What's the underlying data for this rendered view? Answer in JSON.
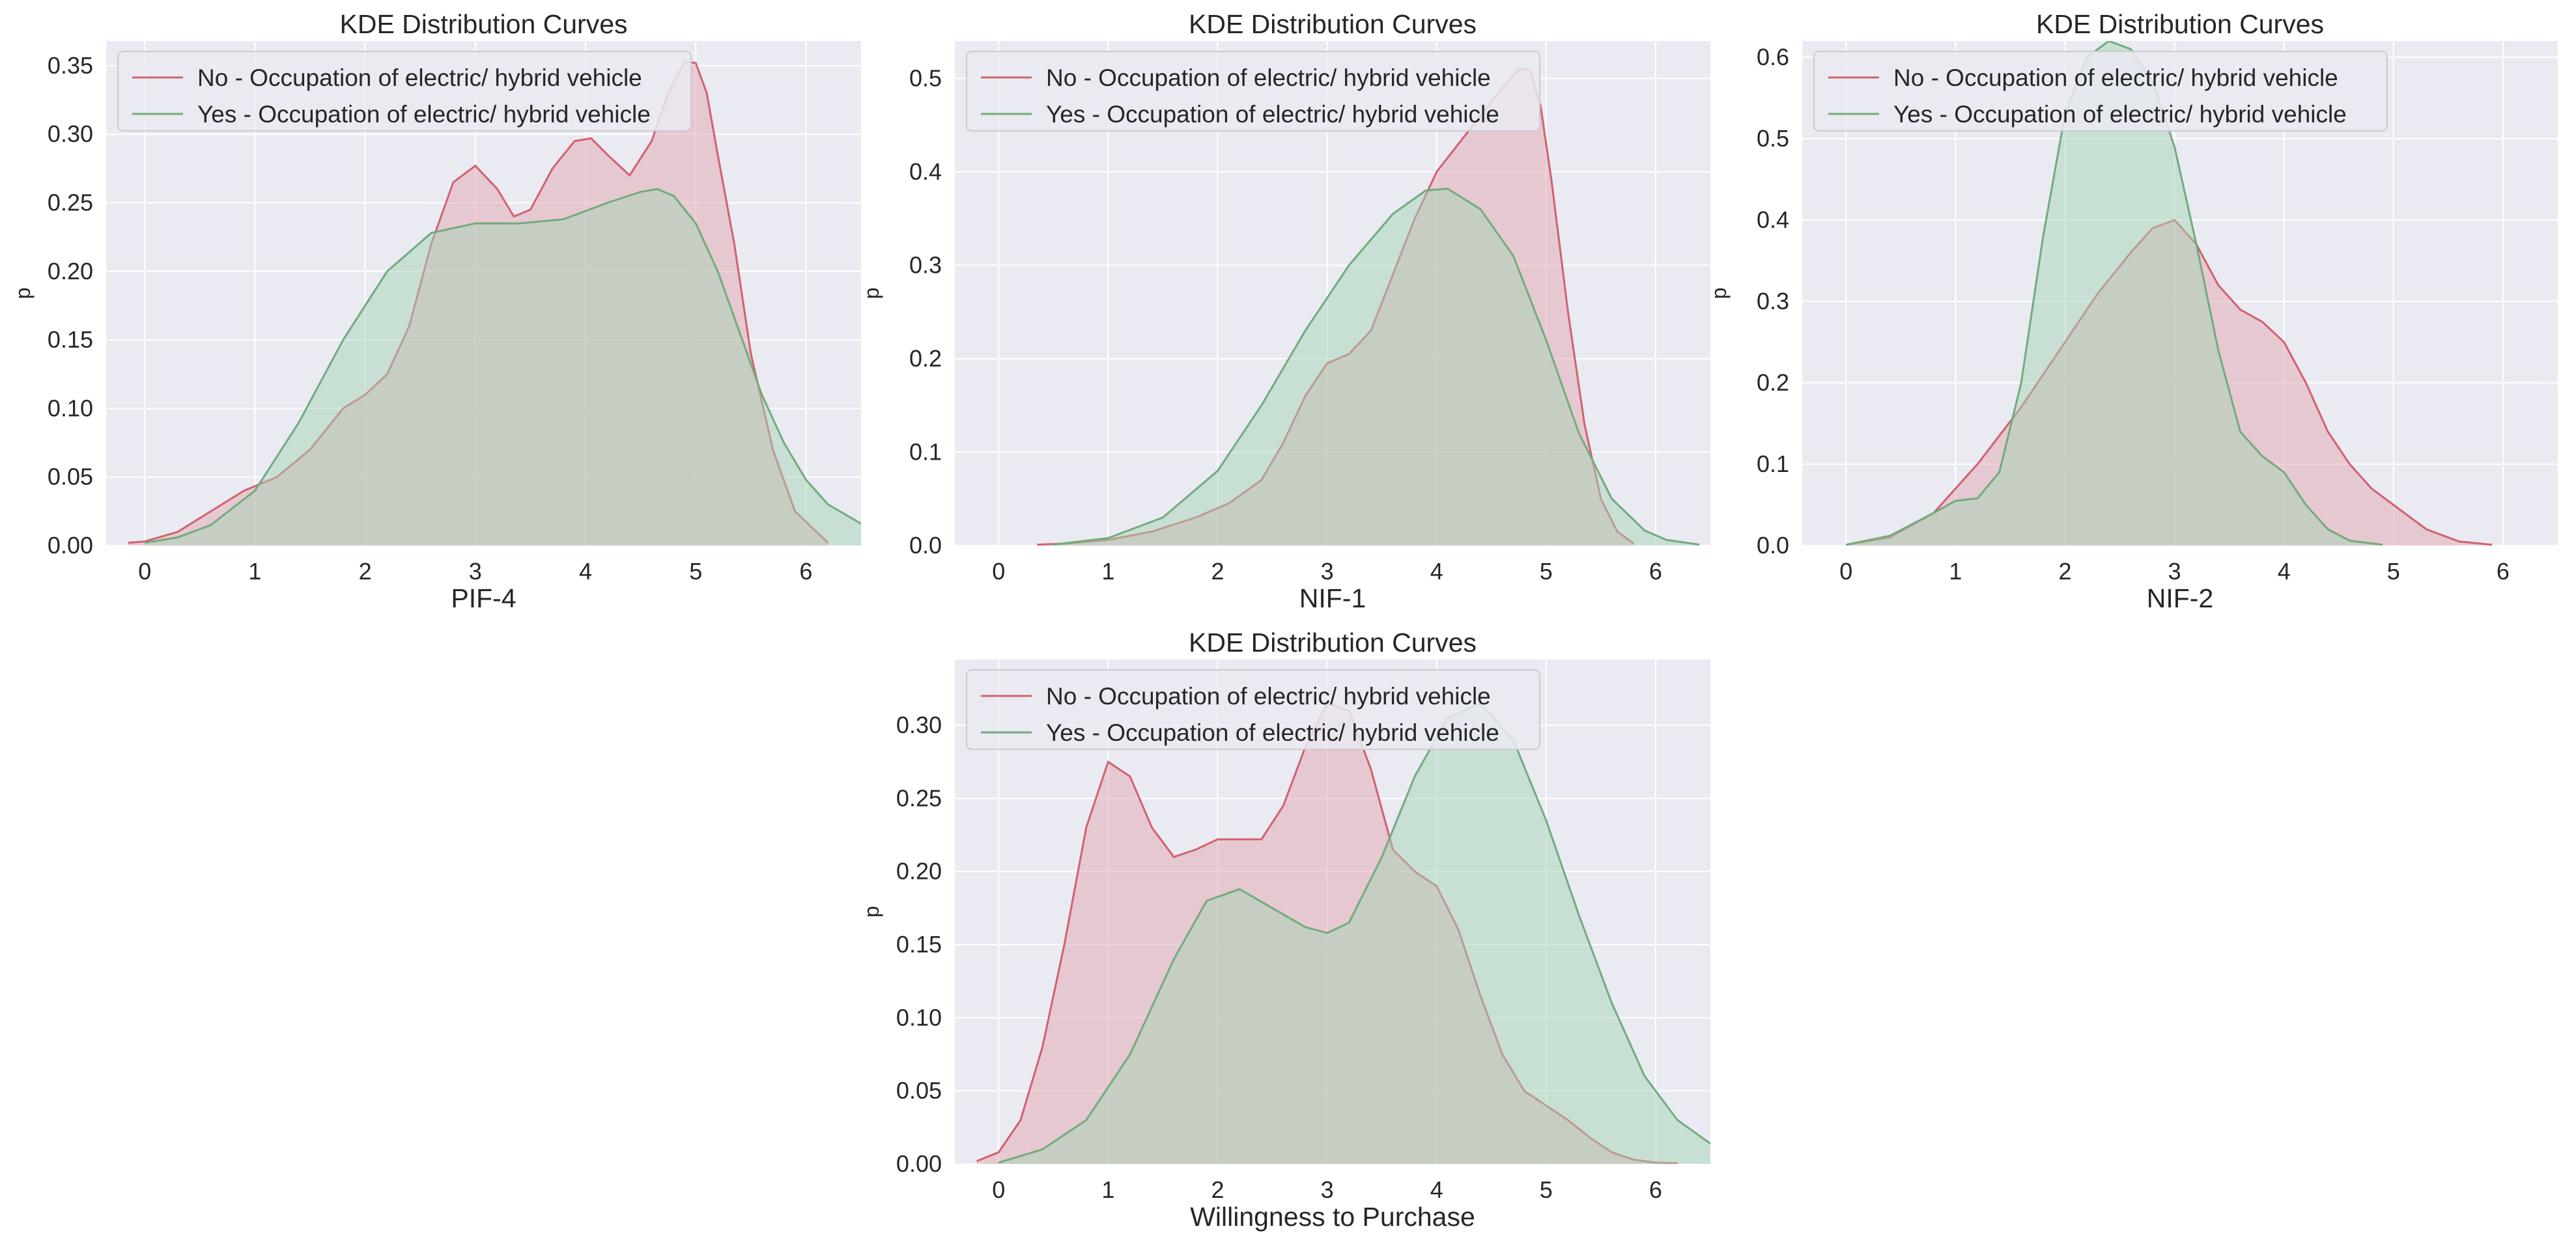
{
  "figure": {
    "background": "#ffffff"
  },
  "colors": {
    "no_line": "#d0626e",
    "no_fill": "#e2a5b0",
    "yes_line": "#72ab7b",
    "yes_fill": "#a6d4b5",
    "axes_bg": "#eaeaf2",
    "grid": "#ffffff"
  },
  "chart_data": [
    {
      "type": "area",
      "title": "KDE Distribution Curves",
      "xlabel": "PIF-4",
      "ylabel": "p",
      "xlim": [
        -0.35,
        6.5
      ],
      "ylim": [
        0,
        0.368
      ],
      "xticks": [
        0,
        1,
        2,
        3,
        4,
        5,
        6
      ],
      "yticks": [
        0.0,
        0.05,
        0.1,
        0.15,
        0.2,
        0.25,
        0.3,
        0.35
      ],
      "ytick_labels": [
        "0.00",
        "0.05",
        "0.10",
        "0.15",
        "0.20",
        "0.25",
        "0.30",
        "0.35"
      ],
      "legend": [
        "No - Occupation of electric/ hybrid vehicle",
        "Yes - Occupation of electric/ hybrid vehicle"
      ],
      "legend_loc": "upper left",
      "series": [
        {
          "name": "No - Occupation of electric/ hybrid vehicle",
          "x": [
            -0.15,
            0.0,
            0.3,
            0.6,
            0.9,
            1.2,
            1.5,
            1.8,
            2.0,
            2.2,
            2.4,
            2.6,
            2.8,
            3.0,
            3.2,
            3.35,
            3.5,
            3.7,
            3.9,
            4.05,
            4.2,
            4.4,
            4.6,
            4.75,
            4.9,
            5.0,
            5.1,
            5.2,
            5.35,
            5.5,
            5.7,
            5.9,
            6.2
          ],
          "y": [
            0.002,
            0.003,
            0.01,
            0.025,
            0.04,
            0.05,
            0.07,
            0.1,
            0.11,
            0.125,
            0.16,
            0.22,
            0.265,
            0.277,
            0.26,
            0.24,
            0.245,
            0.275,
            0.295,
            0.297,
            0.285,
            0.27,
            0.295,
            0.33,
            0.353,
            0.352,
            0.33,
            0.285,
            0.22,
            0.14,
            0.07,
            0.025,
            0.002
          ]
        },
        {
          "name": "Yes - Occupation of electric/ hybrid vehicle",
          "x": [
            0.0,
            0.3,
            0.6,
            1.0,
            1.4,
            1.8,
            2.2,
            2.6,
            3.0,
            3.4,
            3.8,
            4.2,
            4.5,
            4.65,
            4.8,
            5.0,
            5.2,
            5.4,
            5.6,
            5.8,
            6.0,
            6.2,
            6.5
          ],
          "y": [
            0.002,
            0.006,
            0.015,
            0.04,
            0.09,
            0.15,
            0.2,
            0.228,
            0.235,
            0.235,
            0.238,
            0.25,
            0.258,
            0.26,
            0.255,
            0.235,
            0.2,
            0.155,
            0.11,
            0.075,
            0.048,
            0.03,
            0.016
          ]
        }
      ]
    },
    {
      "type": "area",
      "title": "KDE Distribution Curves",
      "xlabel": "NIF-1",
      "ylabel": "p",
      "xlim": [
        -0.4,
        6.5
      ],
      "ylim": [
        0,
        0.54
      ],
      "xticks": [
        0,
        1,
        2,
        3,
        4,
        5,
        6
      ],
      "yticks": [
        0.0,
        0.1,
        0.2,
        0.3,
        0.4,
        0.5
      ],
      "ytick_labels": [
        "0.0",
        "0.1",
        "0.2",
        "0.3",
        "0.4",
        "0.5"
      ],
      "legend": [
        "No - Occupation of electric/ hybrid vehicle",
        "Yes - Occupation of electric/ hybrid vehicle"
      ],
      "legend_loc": "upper left",
      "series": [
        {
          "name": "No - Occupation of electric/ hybrid vehicle",
          "x": [
            0.35,
            0.6,
            1.0,
            1.4,
            1.8,
            2.1,
            2.4,
            2.6,
            2.8,
            3.0,
            3.2,
            3.4,
            3.6,
            3.8,
            4.0,
            4.2,
            4.4,
            4.6,
            4.75,
            4.85,
            4.95,
            5.05,
            5.2,
            5.35,
            5.5,
            5.65,
            5.8
          ],
          "y": [
            0.001,
            0.002,
            0.006,
            0.015,
            0.03,
            0.045,
            0.07,
            0.11,
            0.16,
            0.195,
            0.205,
            0.23,
            0.29,
            0.35,
            0.4,
            0.43,
            0.46,
            0.49,
            0.51,
            0.51,
            0.47,
            0.39,
            0.25,
            0.13,
            0.05,
            0.015,
            0.002
          ]
        },
        {
          "name": "Yes - Occupation of electric/ hybrid vehicle",
          "x": [
            0.5,
            1.0,
            1.5,
            2.0,
            2.4,
            2.8,
            3.2,
            3.6,
            3.9,
            4.1,
            4.4,
            4.7,
            5.0,
            5.3,
            5.6,
            5.9,
            6.1,
            6.4
          ],
          "y": [
            0.001,
            0.008,
            0.03,
            0.08,
            0.15,
            0.23,
            0.3,
            0.355,
            0.38,
            0.382,
            0.36,
            0.31,
            0.22,
            0.12,
            0.05,
            0.016,
            0.006,
            0.001
          ]
        }
      ]
    },
    {
      "type": "area",
      "title": "KDE Distribution Curves",
      "xlabel": "NIF-2",
      "ylabel": "p",
      "xlim": [
        -0.4,
        6.5
      ],
      "ylim": [
        0,
        0.62
      ],
      "xticks": [
        0,
        1,
        2,
        3,
        4,
        5,
        6
      ],
      "yticks": [
        0.0,
        0.1,
        0.2,
        0.3,
        0.4,
        0.5,
        0.6
      ],
      "ytick_labels": [
        "0.0",
        "0.1",
        "0.2",
        "0.3",
        "0.4",
        "0.5",
        "0.6"
      ],
      "legend": [
        "No - Occupation of electric/ hybrid vehicle",
        "Yes - Occupation of electric/ hybrid vehicle"
      ],
      "legend_loc": "upper left",
      "series": [
        {
          "name": "No - Occupation of electric/ hybrid vehicle",
          "x": [
            0.0,
            0.4,
            0.8,
            1.2,
            1.6,
            2.0,
            2.3,
            2.6,
            2.8,
            3.0,
            3.2,
            3.4,
            3.6,
            3.8,
            4.0,
            4.2,
            4.4,
            4.6,
            4.8,
            5.0,
            5.3,
            5.6,
            5.9
          ],
          "y": [
            0.001,
            0.01,
            0.04,
            0.1,
            0.17,
            0.25,
            0.31,
            0.36,
            0.39,
            0.4,
            0.37,
            0.32,
            0.29,
            0.275,
            0.25,
            0.2,
            0.14,
            0.1,
            0.07,
            0.05,
            0.02,
            0.005,
            0.001
          ]
        },
        {
          "name": "Yes - Occupation of electric/ hybrid vehicle",
          "x": [
            0.0,
            0.4,
            0.8,
            1.0,
            1.2,
            1.4,
            1.6,
            1.8,
            2.0,
            2.2,
            2.4,
            2.6,
            2.8,
            3.0,
            3.2,
            3.4,
            3.6,
            3.8,
            4.0,
            4.2,
            4.4,
            4.6,
            4.9
          ],
          "y": [
            0.001,
            0.012,
            0.04,
            0.055,
            0.058,
            0.09,
            0.2,
            0.38,
            0.53,
            0.6,
            0.62,
            0.61,
            0.57,
            0.49,
            0.37,
            0.24,
            0.14,
            0.11,
            0.09,
            0.05,
            0.02,
            0.006,
            0.001
          ]
        }
      ]
    },
    {
      "type": "area",
      "title": "KDE Distribution Curves",
      "xlabel": "Willingness to Purchase",
      "ylabel": "p",
      "xlim": [
        -0.4,
        6.5
      ],
      "ylim": [
        0,
        0.345
      ],
      "xticks": [
        0,
        1,
        2,
        3,
        4,
        5,
        6
      ],
      "yticks": [
        0.0,
        0.05,
        0.1,
        0.15,
        0.2,
        0.25,
        0.3
      ],
      "ytick_labels": [
        "0.00",
        "0.05",
        "0.10",
        "0.15",
        "0.20",
        "0.25",
        "0.30"
      ],
      "legend": [
        "No - Occupation of electric/ hybrid vehicle",
        "Yes - Occupation of electric/ hybrid vehicle"
      ],
      "legend_loc": "upper left",
      "series": [
        {
          "name": "No - Occupation of electric/ hybrid vehicle",
          "x": [
            -0.2,
            0.0,
            0.2,
            0.4,
            0.6,
            0.8,
            1.0,
            1.2,
            1.4,
            1.6,
            1.8,
            2.0,
            2.2,
            2.4,
            2.6,
            2.8,
            3.0,
            3.2,
            3.4,
            3.6,
            3.8,
            4.0,
            4.2,
            4.4,
            4.6,
            4.8,
            5.0,
            5.2,
            5.4,
            5.6,
            5.8,
            6.0,
            6.2
          ],
          "y": [
            0.002,
            0.008,
            0.03,
            0.08,
            0.15,
            0.23,
            0.275,
            0.265,
            0.23,
            0.21,
            0.215,
            0.222,
            0.222,
            0.222,
            0.245,
            0.285,
            0.315,
            0.31,
            0.27,
            0.215,
            0.2,
            0.19,
            0.16,
            0.115,
            0.075,
            0.05,
            0.04,
            0.03,
            0.018,
            0.008,
            0.003,
            0.001,
            0.0005
          ]
        },
        {
          "name": "Yes - Occupation of electric/ hybrid vehicle",
          "x": [
            0.0,
            0.4,
            0.8,
            1.2,
            1.6,
            1.9,
            2.2,
            2.5,
            2.8,
            3.0,
            3.2,
            3.5,
            3.8,
            4.1,
            4.4,
            4.7,
            5.0,
            5.3,
            5.6,
            5.9,
            6.2,
            6.5
          ],
          "y": [
            0.001,
            0.01,
            0.03,
            0.075,
            0.14,
            0.18,
            0.188,
            0.175,
            0.162,
            0.158,
            0.165,
            0.21,
            0.265,
            0.305,
            0.315,
            0.29,
            0.235,
            0.17,
            0.11,
            0.06,
            0.03,
            0.014
          ]
        }
      ]
    }
  ]
}
